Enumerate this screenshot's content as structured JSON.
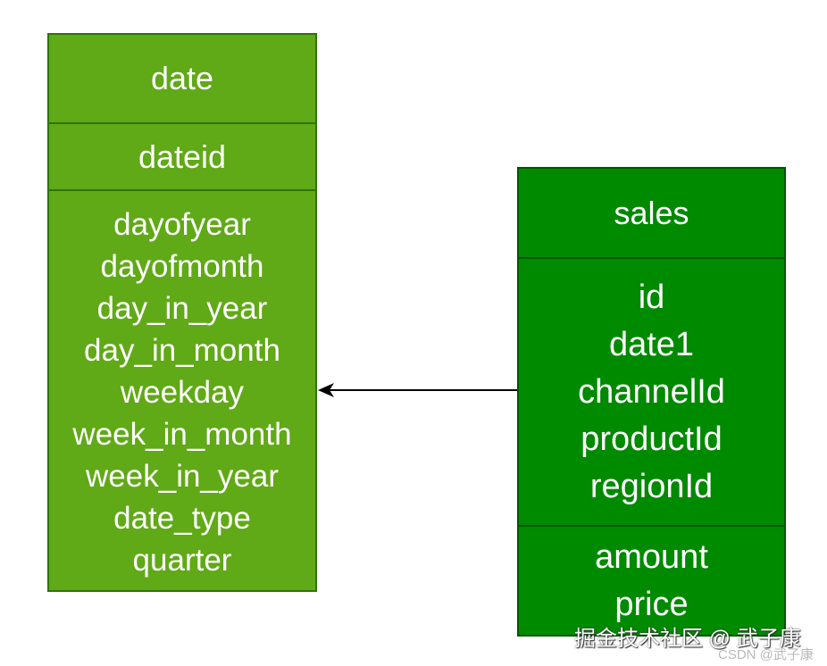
{
  "entities": [
    {
      "name": "date",
      "key": [
        "dateid"
      ],
      "fields": [
        "dayofyear",
        "dayofmonth",
        "day_in_year",
        "day_in_month",
        "weekday",
        "week_in_month",
        "week_in_year",
        "date_type",
        "quarter"
      ],
      "color": "#60a917"
    },
    {
      "name": "sales",
      "key": [
        "id",
        "date1",
        "channelId",
        "productId",
        "regionId"
      ],
      "fields": [
        "amount",
        "price"
      ],
      "color": "#008a00"
    }
  ],
  "relationship": {
    "from": "sales",
    "to": "date"
  },
  "watermark": {
    "line1": "掘金技术社区 @ 武子康",
    "line2": "CSDN @武子康"
  }
}
